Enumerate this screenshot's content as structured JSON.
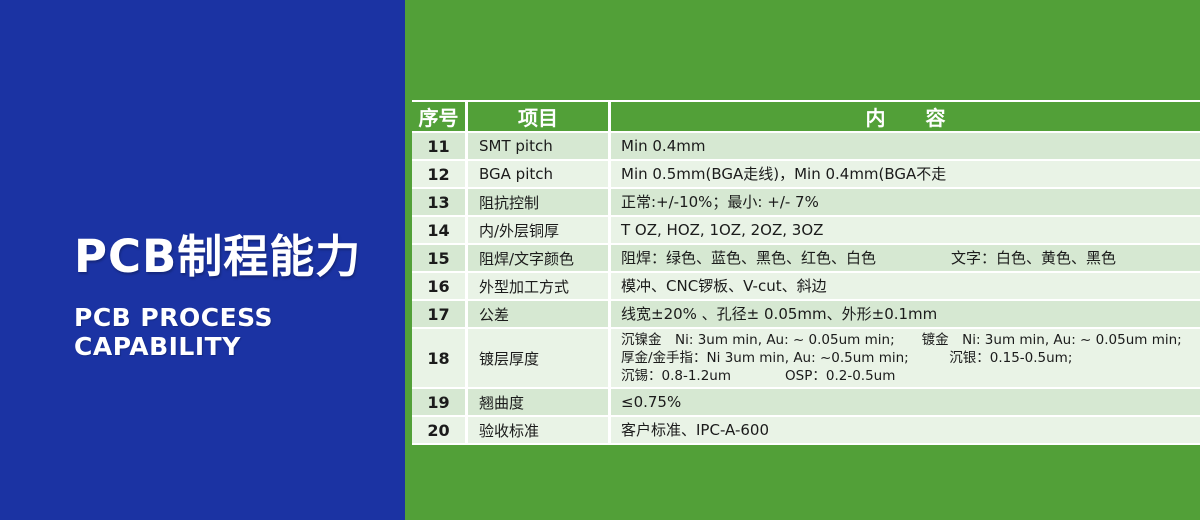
{
  "colors": {
    "blue": "#1b33a3",
    "green": "#52a038",
    "row_tint": "#d6e8d2",
    "row_light": "#e9f3e6",
    "text_dark": "#1b1b1b"
  },
  "left_panel": {
    "title": "PCB制程能力",
    "subtitle_line1": "PCB PROCESS",
    "subtitle_line2": "CAPABILITY"
  },
  "table": {
    "headers": [
      "序号",
      "项目",
      "内　　容"
    ],
    "rows": [
      {
        "no": "11",
        "item": "SMT pitch",
        "lines": [
          "Min 0.4mm"
        ]
      },
      {
        "no": "12",
        "item": "BGA pitch",
        "lines": [
          "Min 0.5mm(BGA走线)，Min 0.4mm(BGA不走"
        ]
      },
      {
        "no": "13",
        "item": "阻抗控制",
        "lines": [
          "正常:+/-10%；最小: +/- 7%"
        ]
      },
      {
        "no": "14",
        "item": "内/外层铜厚",
        "lines": [
          "T OZ, HOZ, 1OZ, 2OZ, 3OZ"
        ]
      },
      {
        "no": "15",
        "item": "阻焊/文字颜色",
        "lines": [
          "阻焊：绿色、蓝色、黑色、红色、白色　　　　　文字：白色、黄色、黑色"
        ]
      },
      {
        "no": "16",
        "item": "外型加工方式",
        "lines": [
          "模冲、CNC锣板、V-cut、斜边"
        ]
      },
      {
        "no": "17",
        "item": "公差",
        "lines": [
          "线宽±20% 、孔径± 0.05mm、外形±0.1mm"
        ]
      },
      {
        "no": "18",
        "item": "镀层厚度",
        "lines": [
          "沉镍金　Ni: 3um min, Au: ~ 0.05um min;　　镀金　Ni: 3um min, Au: ~ 0.05um min;",
          "厚金/金手指：Ni 3um min, Au: ~0.5um min;　　　沉银：0.15-0.5um;",
          "沉锡：0.8-1.2um　　　　OSP：0.2-0.5um"
        ]
      },
      {
        "no": "19",
        "item": "翘曲度",
        "lines": [
          "≤0.75%"
        ]
      },
      {
        "no": "20",
        "item": "验收标准",
        "lines": [
          "客户标准、IPC-A-600"
        ]
      }
    ]
  }
}
